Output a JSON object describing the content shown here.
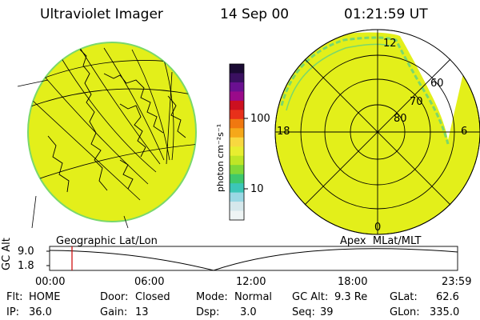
{
  "header": {
    "instrument": "Ultraviolet Imager",
    "date": "14 Sep 00",
    "time": "01:21:59 UT"
  },
  "colors": {
    "background": "#ffffff",
    "image_fill": "#e3ef1a",
    "image_edge": "#7ad86b",
    "grid": "#000000",
    "time_marker": "#cc0000"
  },
  "colorbar": {
    "unit_label": "photon cm⁻²s⁻¹",
    "ticks": [
      "100",
      "10"
    ],
    "scale": "log",
    "colors": [
      "#1a0a33",
      "#3a1060",
      "#6a1090",
      "#9a0a8a",
      "#cc1020",
      "#e8301a",
      "#f07810",
      "#f5a81a",
      "#f8d840",
      "#e8ee30",
      "#bfe626",
      "#7fd838",
      "#3ec86c",
      "#3cc6b8",
      "#9ad8e4",
      "#d6e8ec",
      "#eef4f4"
    ]
  },
  "geographic_panel": {
    "label": "Geographic Lat/Lon"
  },
  "polar_panel": {
    "label": "Apex  MLat/MLT",
    "mlt_labels": {
      "top": "12",
      "left": "18",
      "right": "6",
      "bottom": "0"
    },
    "lat_labels": [
      "60",
      "70",
      "80"
    ]
  },
  "gc_alt_plot": {
    "ylabel": "GC Alt",
    "y_ticks": [
      "9.0",
      "1.8"
    ],
    "x_ticks": [
      "00:00",
      "06:00",
      "12:00",
      "18:00",
      "23:59"
    ],
    "marker_time": "01:21:59"
  },
  "status": {
    "flt_label": "Flt:",
    "flt_value": "HOME",
    "ip_label": "IP:",
    "ip_value": "36.0",
    "door_label": "Door:",
    "door_value": "Closed",
    "gain_label": "Gain:",
    "gain_value": "13",
    "mode_label": "Mode:",
    "mode_value": "Normal",
    "dsp_label": "Dsp:",
    "dsp_value": "3.0",
    "gcalt_label": "GC Alt:",
    "gcalt_value": "9.3 Re",
    "seq_label": "Seq:",
    "seq_value": "39",
    "glat_label": "GLat:",
    "glat_value": "62.6",
    "glon_label": "GLon:",
    "glon_value": "335.0"
  }
}
